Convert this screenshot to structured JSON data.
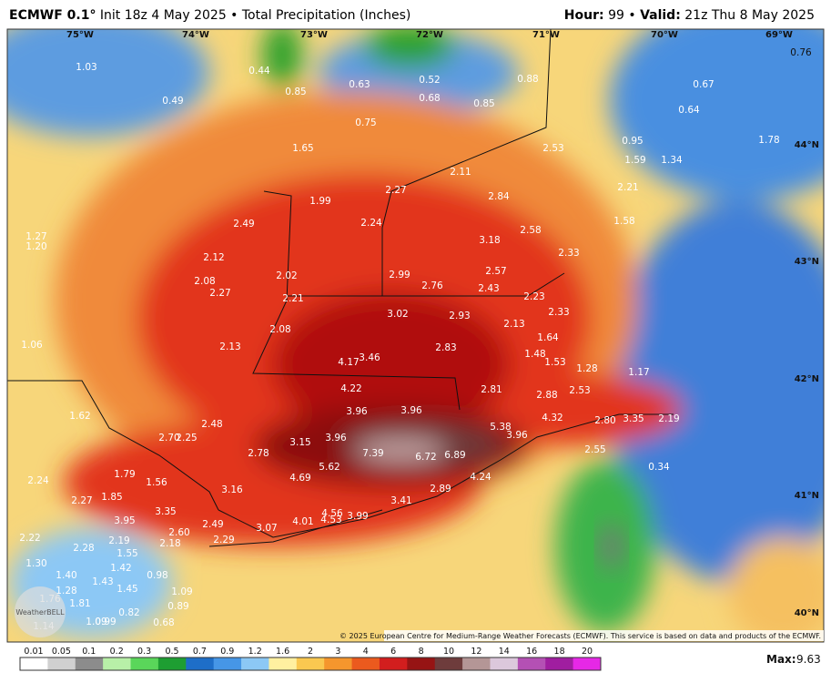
{
  "header": {
    "model": "ECMWF 0.1°",
    "run": "Init 18z 4 May 2025 • Total Precipitation (Inches)",
    "hour_label": "Hour:",
    "hour": "99",
    "separator": "•",
    "valid_label": "Valid:",
    "valid": "21z Thu 8 May 2025"
  },
  "longitudes": [
    "75°W",
    "74°W",
    "73°W",
    "72°W",
    "71°W",
    "70°W",
    "69°W"
  ],
  "latitudes": [
    "44°N",
    "43°N",
    "42°N",
    "41°N",
    "40°N"
  ],
  "point_values": [
    "1.03",
    "0.44",
    "0.85",
    "0.49",
    "0.63",
    "0.52",
    "0.68",
    "0.88",
    "0.85",
    "0.75",
    "0.76",
    "0.67",
    "0.64",
    "1.65",
    "0.95",
    "1.78",
    "1.59",
    "1.34",
    "2.53",
    "2.11",
    "2.27",
    "1.99",
    "2.84",
    "2.21",
    "2.49",
    "2.24",
    "1.58",
    "1.27",
    "1.20",
    "3.18",
    "2.58",
    "2.33",
    "2.12",
    "2.99",
    "2.57",
    "2.08",
    "2.02",
    "2.27",
    "2.76",
    "2.43",
    "2.21",
    "2.23",
    "3.02",
    "2.93",
    "2.33",
    "2.08",
    "2.13",
    "2.83",
    "1.06",
    "2.13",
    "4.17",
    "3.46",
    "1.64",
    "1.48",
    "1.53",
    "1.28",
    "1.17",
    "4.22",
    "2.81",
    "2.88",
    "2.53",
    "1.62",
    "3.96",
    "3.96",
    "2.48",
    "4.32",
    "2.80",
    "3.35",
    "2.19",
    "5.38",
    "3.96",
    "2.70",
    "2.25",
    "3.96",
    "3.15",
    "2.78",
    "7.39",
    "6.72",
    "6.89",
    "2.55",
    "5.62",
    "1.79",
    "0.34",
    "2.24",
    "1.56",
    "4.69",
    "4.24",
    "3.16",
    "2.27",
    "1.85",
    "2.89",
    "3.41",
    "3.35",
    "4.56",
    "3.95",
    "4.01",
    "4.53",
    "3.99",
    "2.49",
    "3.07",
    "2.60",
    "2.22",
    "2.19",
    "2.18",
    "2.29",
    "2.28",
    "1.55",
    "1.30",
    "1.42",
    "1.40",
    "0.98",
    "1.43",
    "1.45",
    "1.28",
    "1.09",
    "1.76",
    "1.81",
    "0.89",
    "0.82",
    "0.68",
    "1.14",
    "1.09",
    "0.99"
  ],
  "logo": "WeatherBELL",
  "copyright": "© 2025 European Centre for Medium-Range Weather Forecasts (ECMWF). This service is based on data and products of the ECMWF.",
  "colorbar": {
    "ticks": [
      0.01,
      0.05,
      0.1,
      0.2,
      0.3,
      0.5,
      0.7,
      0.9,
      1.2,
      1.6,
      2,
      3,
      4,
      6,
      8,
      10,
      12,
      14,
      16,
      18,
      20
    ],
    "colors": [
      "#ffffff",
      "#d0d0d0",
      "#8c8c8c",
      "#b8f0a8",
      "#5ad65a",
      "#1e9e32",
      "#1e6ec8",
      "#4696e6",
      "#8cc8f5",
      "#fff0a0",
      "#fac850",
      "#f5962d",
      "#eb5a1e",
      "#d21e1e",
      "#961414",
      "#6e3c3c",
      "#b49696",
      "#dcc8dc",
      "#b450b4",
      "#a01ea0",
      "#e628e6"
    ]
  },
  "max_label": "Max:",
  "max_value": "9.63"
}
